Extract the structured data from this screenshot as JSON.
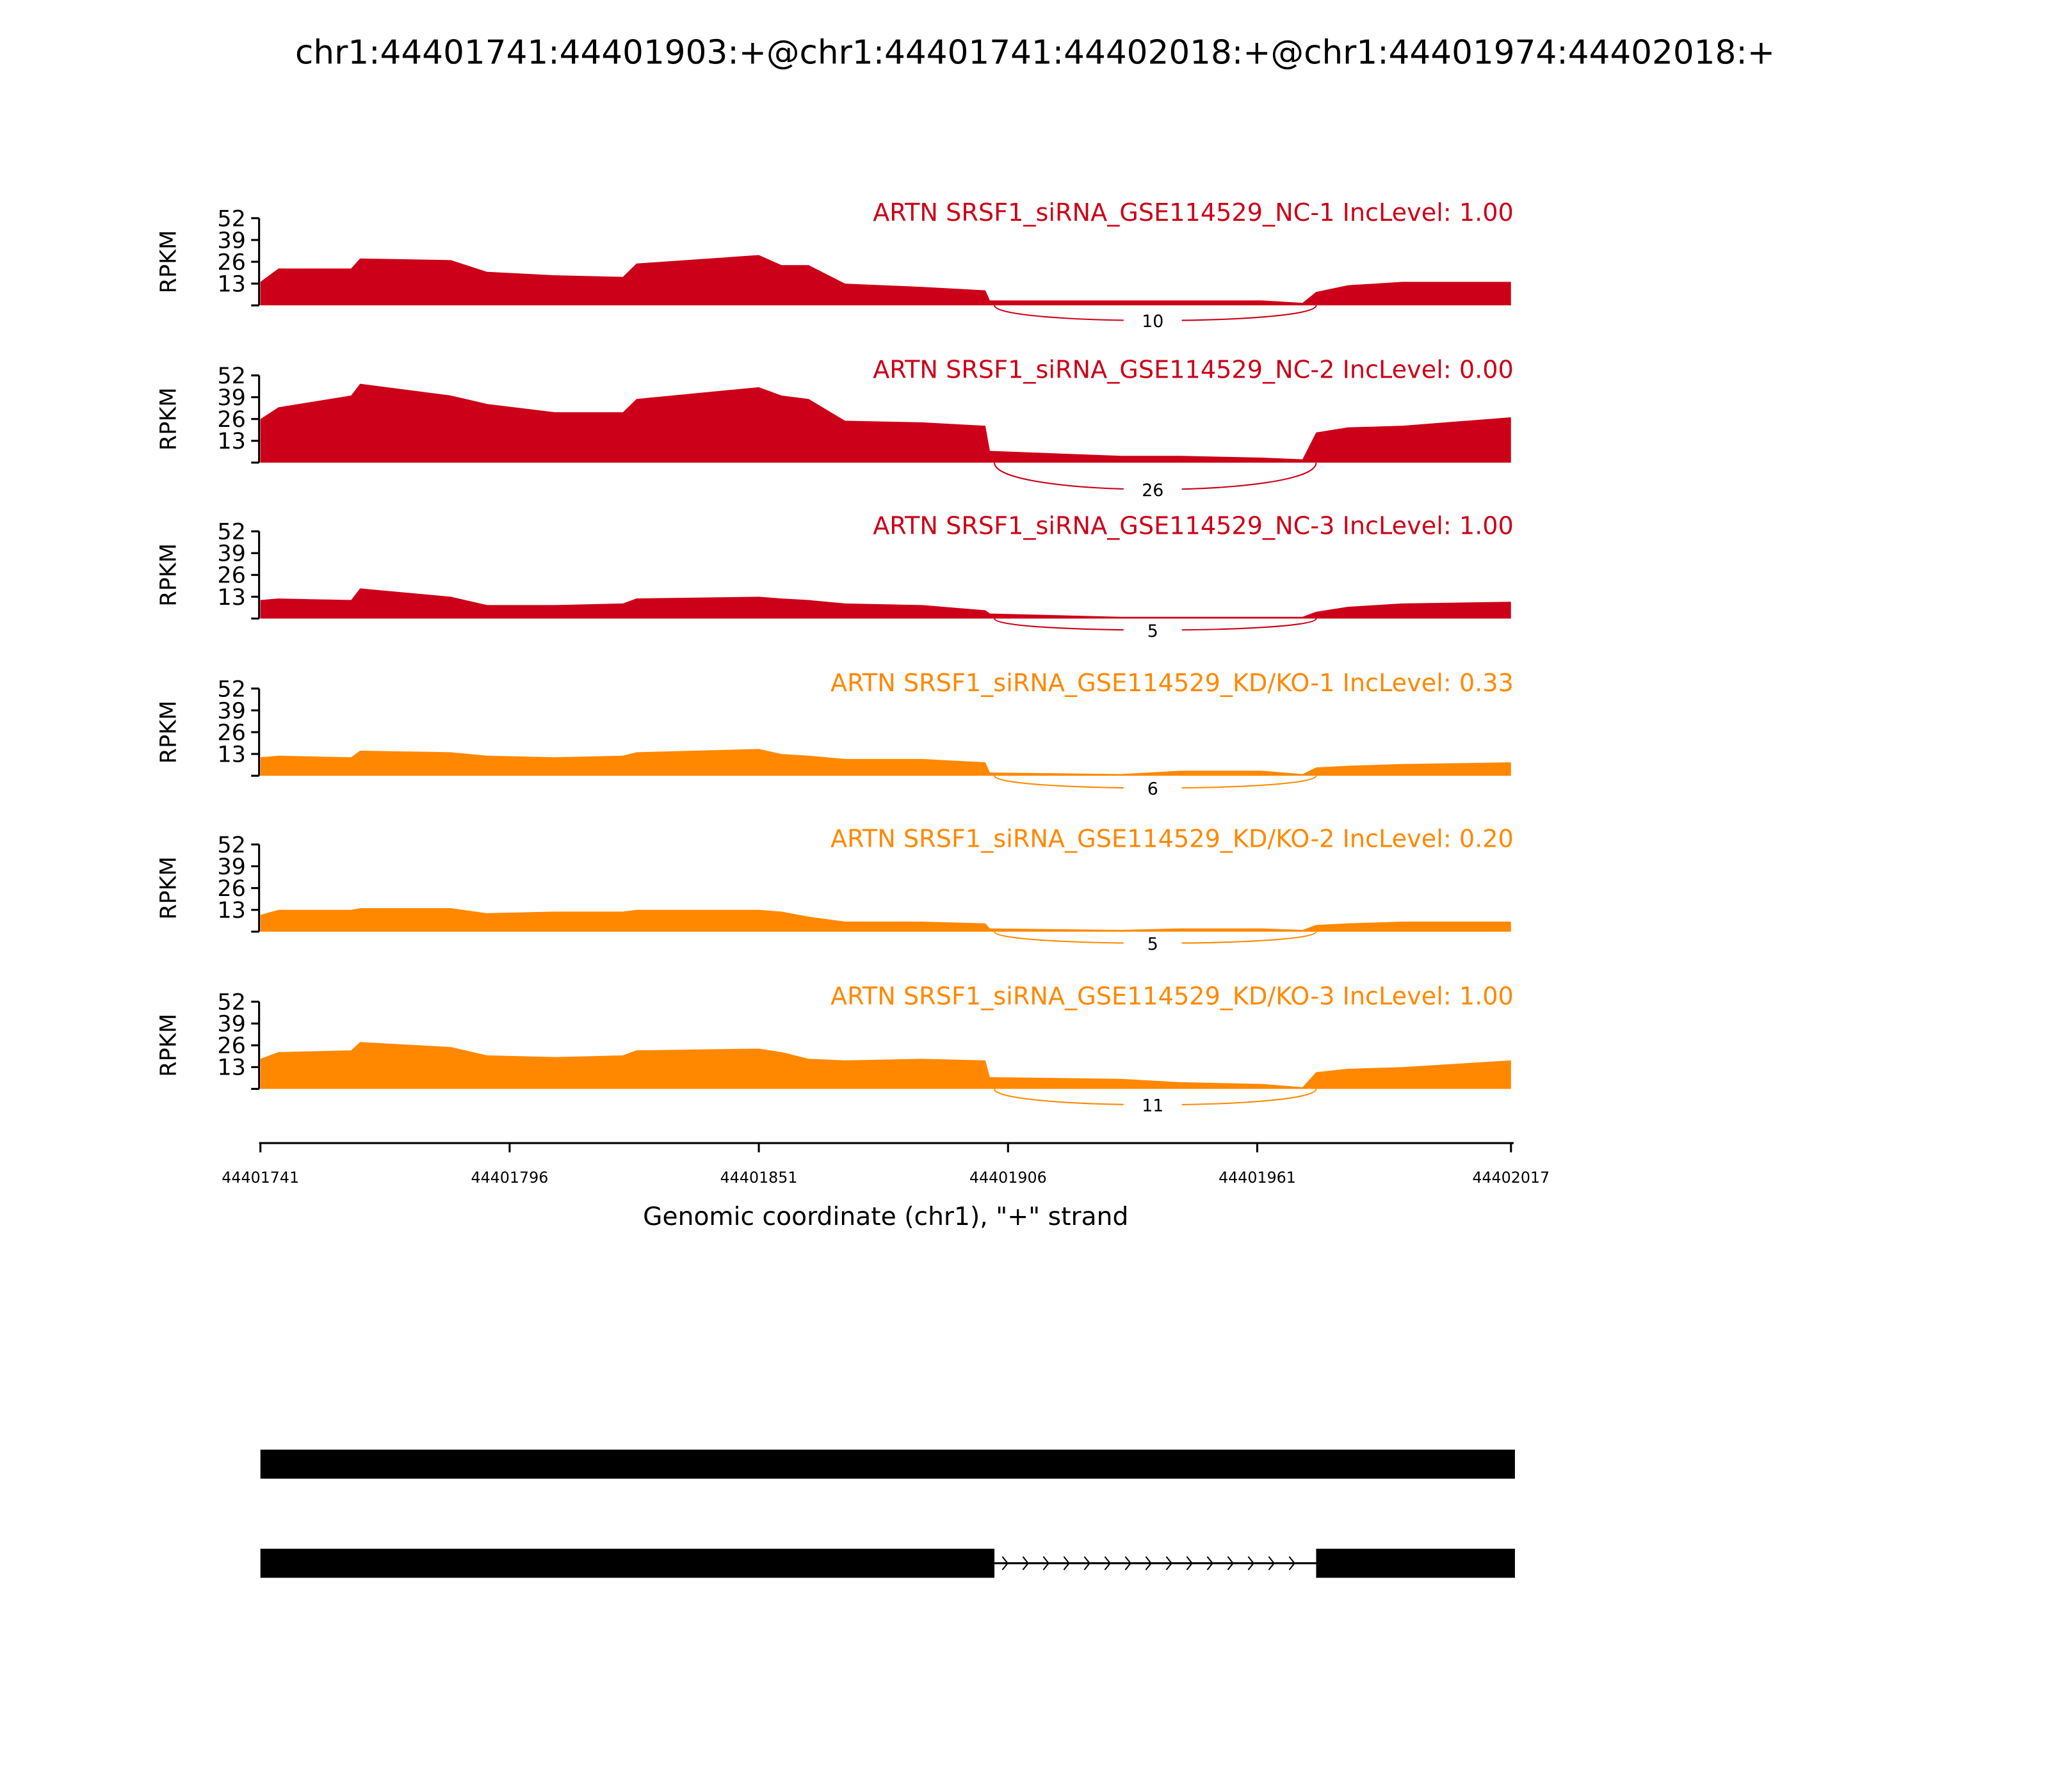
{
  "chart_data": {
    "type": "area",
    "title": "chr1:44401741:44401903:+@chr1:44401741:44402018:+@chr1:44401974:44402018:+",
    "xlabel": "Genomic coordinate (chr1), \"+\" strand",
    "ylabel": "RPKM",
    "xlim": [
      44401741,
      44402017
    ],
    "xticks": [
      "44401741",
      "44401796",
      "44401851",
      "44401906",
      "44401961",
      "44402017"
    ],
    "ylim": [
      0,
      52
    ],
    "yticks": [
      "13",
      "26",
      "39",
      "52"
    ],
    "colors": {
      "NC": "#cc0018",
      "KD": "#ff8800"
    },
    "offsets": [
      0,
      4,
      20,
      22,
      42,
      50,
      65,
      80,
      83,
      110,
      115,
      121,
      129,
      146,
      160,
      161,
      190,
      203,
      221,
      230,
      233,
      240,
      252,
      276
    ],
    "junction": {
      "start": 44401903,
      "end": 44401974
    },
    "series": [
      {
        "name": "ARTN SRSF1_siRNA_GSE114529_NC-1 IncLevel: 1.00",
        "group": "NC",
        "junction_count": "10",
        "values": [
          14,
          22,
          22,
          28,
          27,
          20,
          18,
          17,
          25,
          30,
          24,
          24,
          13,
          11,
          9,
          3,
          3,
          3,
          3,
          1.5,
          8,
          12,
          14,
          14
        ]
      },
      {
        "name": "ARTN SRSF1_siRNA_GSE114529_NC-2 IncLevel: 0.00",
        "group": "NC",
        "junction_count": "26",
        "values": [
          26,
          33,
          40,
          47,
          40,
          35,
          30,
          30,
          38,
          45,
          40,
          38,
          25,
          24,
          22,
          7,
          4,
          4,
          3,
          2,
          18,
          21,
          22,
          27
        ]
      },
      {
        "name": "ARTN SRSF1_siRNA_GSE114529_NC-3 IncLevel: 1.00",
        "group": "NC",
        "junction_count": "5",
        "values": [
          11,
          12,
          11,
          18,
          13,
          8,
          8,
          9,
          12,
          13,
          12,
          11,
          9,
          8,
          5,
          3,
          1,
          1,
          1,
          1,
          4,
          7,
          9,
          10
        ]
      },
      {
        "name": "ARTN SRSF1_siRNA_GSE114529_KD/KO-1 IncLevel: 0.33",
        "group": "KD",
        "junction_count": "6",
        "values": [
          11,
          12,
          11,
          15,
          14,
          12,
          11,
          12,
          14,
          16,
          13,
          12,
          10,
          10,
          8,
          2,
          1,
          3,
          3,
          1,
          5,
          6,
          7,
          8
        ]
      },
      {
        "name": "ARTN SRSF1_siRNA_GSE114529_KD/KO-2 IncLevel: 0.20",
        "group": "KD",
        "junction_count": "5",
        "values": [
          10,
          13,
          13,
          14,
          14,
          11,
          12,
          12,
          13,
          13,
          12,
          9,
          6,
          6,
          5,
          2,
          1,
          2,
          2,
          1,
          4,
          5,
          6,
          6
        ]
      },
      {
        "name": "ARTN SRSF1_siRNA_GSE114529_KD/KO-3 IncLevel: 1.00",
        "group": "KD",
        "junction_count": "11",
        "values": [
          18,
          22,
          23,
          28,
          25,
          20,
          19,
          20,
          23,
          24,
          22,
          18,
          17,
          18,
          17,
          7,
          6,
          4,
          3,
          1,
          10,
          12,
          13,
          17
        ]
      }
    ],
    "transcripts": [
      {
        "exons": [
          [
            44401741,
            44402017
          ]
        ]
      },
      {
        "exons": [
          [
            44401741,
            44401903
          ],
          [
            44401974,
            44402017
          ]
        ]
      }
    ]
  }
}
